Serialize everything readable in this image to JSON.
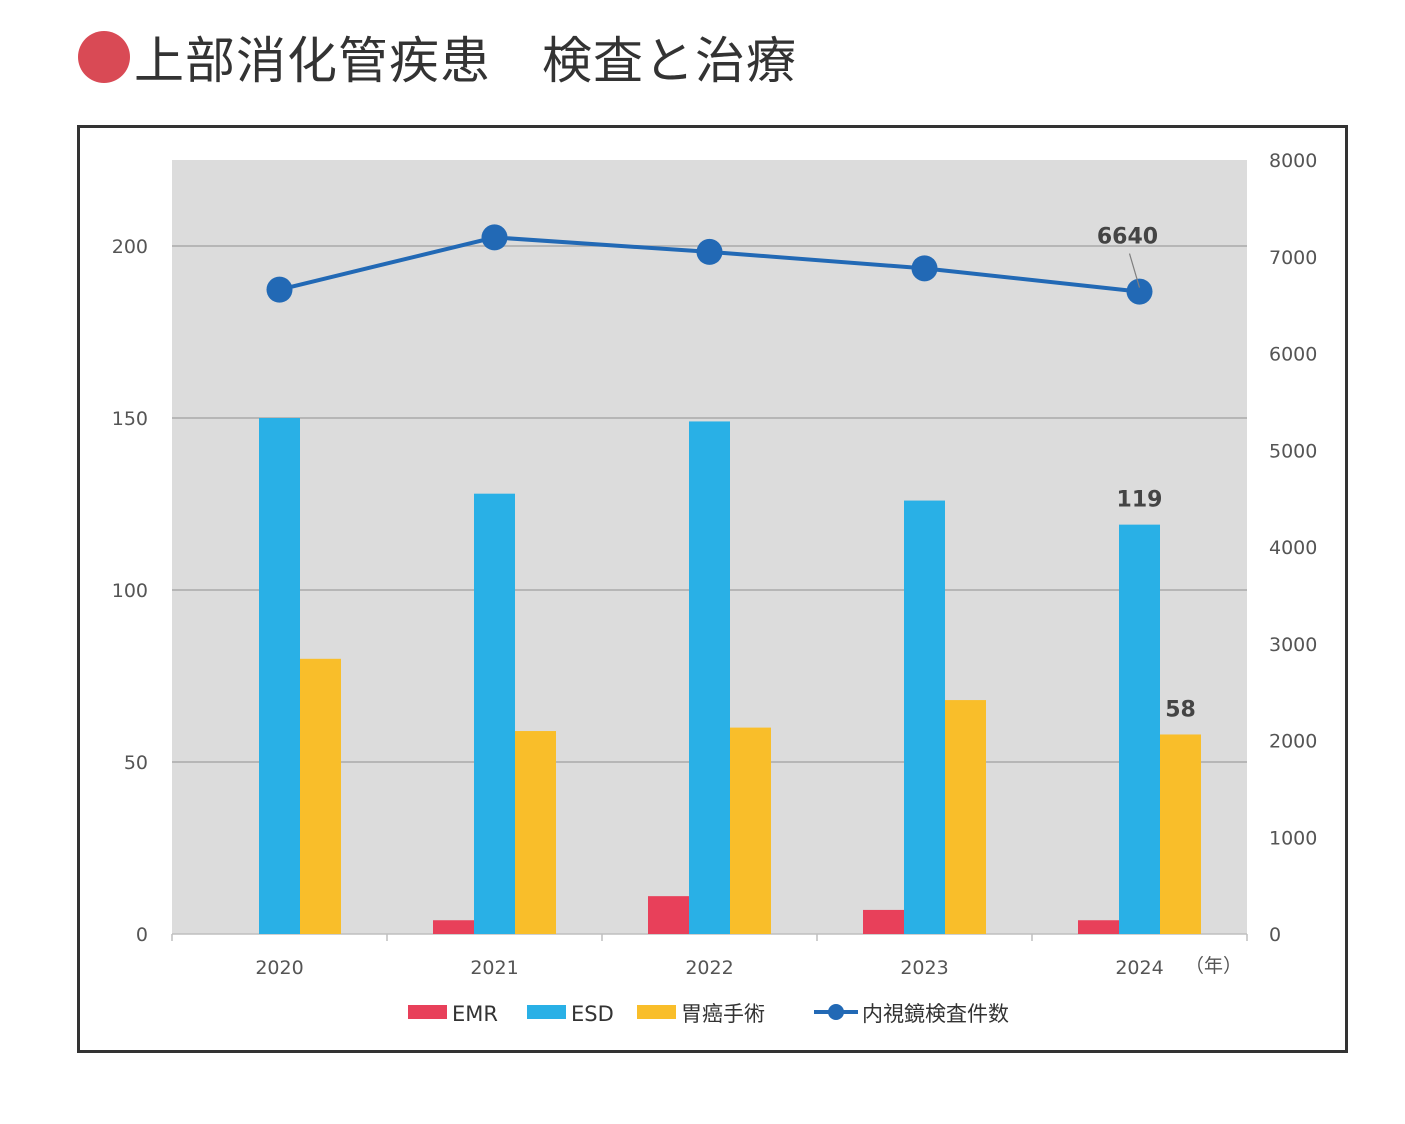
{
  "title": "上部消化管疾患　検査と治療",
  "colors": {
    "emr": "#e8405a",
    "esd": "#29b0e6",
    "surgery": "#f9be2a",
    "line": "#2269b5",
    "plot_bg": "#dcdcdc",
    "title_dot": "#d94a55"
  },
  "chart_data": {
    "type": "bar",
    "categories": [
      "2020",
      "2021",
      "2022",
      "2023",
      "2024"
    ],
    "x_unit_label": "（年）",
    "series": [
      {
        "name": "EMR",
        "type": "bar",
        "axis": "left",
        "values": [
          0,
          4,
          11,
          7,
          4
        ]
      },
      {
        "name": "ESD",
        "type": "bar",
        "axis": "left",
        "values": [
          150,
          128,
          149,
          126,
          119
        ]
      },
      {
        "name": "胃癌手術",
        "type": "bar",
        "axis": "left",
        "values": [
          80,
          59,
          60,
          68,
          58
        ]
      },
      {
        "name": "内視鏡検査件数",
        "type": "line",
        "axis": "right",
        "values": [
          6660,
          7200,
          7050,
          6880,
          6640
        ]
      }
    ],
    "y_left": {
      "range": [
        0,
        225
      ],
      "ticks": [
        0,
        50,
        100,
        150,
        200
      ]
    },
    "y_right": {
      "range": [
        0,
        8000
      ],
      "ticks": [
        0,
        1000,
        2000,
        3000,
        4000,
        5000,
        6000,
        7000,
        8000
      ]
    },
    "data_labels": [
      {
        "series": "ESD",
        "category": "2024",
        "text": "119"
      },
      {
        "series": "胃癌手術",
        "category": "2024",
        "text": "58"
      },
      {
        "series": "内視鏡検査件数",
        "category": "2024",
        "text": "6640"
      }
    ],
    "grid": true,
    "legend_position": "bottom"
  }
}
